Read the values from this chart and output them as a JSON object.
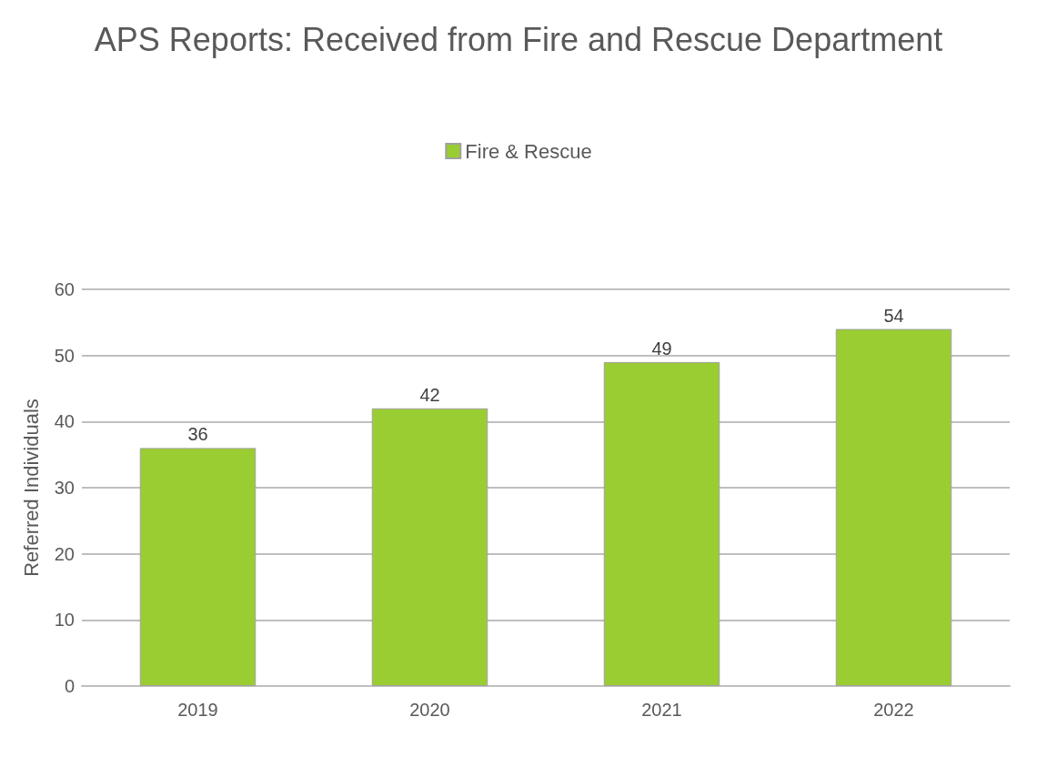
{
  "chart_data": {
    "type": "bar",
    "title": "APS Reports: Received from Fire and Rescue Department",
    "ylabel": "Referred Individuals",
    "categories": [
      "2019",
      "2020",
      "2021",
      "2022"
    ],
    "series": [
      {
        "name": "Fire & Rescue",
        "color": "#9acd32",
        "values": [
          36,
          42,
          49,
          54
        ]
      }
    ],
    "ylim": [
      0,
      60
    ],
    "yticks": [
      0,
      10,
      20,
      30,
      40,
      50,
      60
    ],
    "grid": "y",
    "legend": "top",
    "data_labels": true
  }
}
